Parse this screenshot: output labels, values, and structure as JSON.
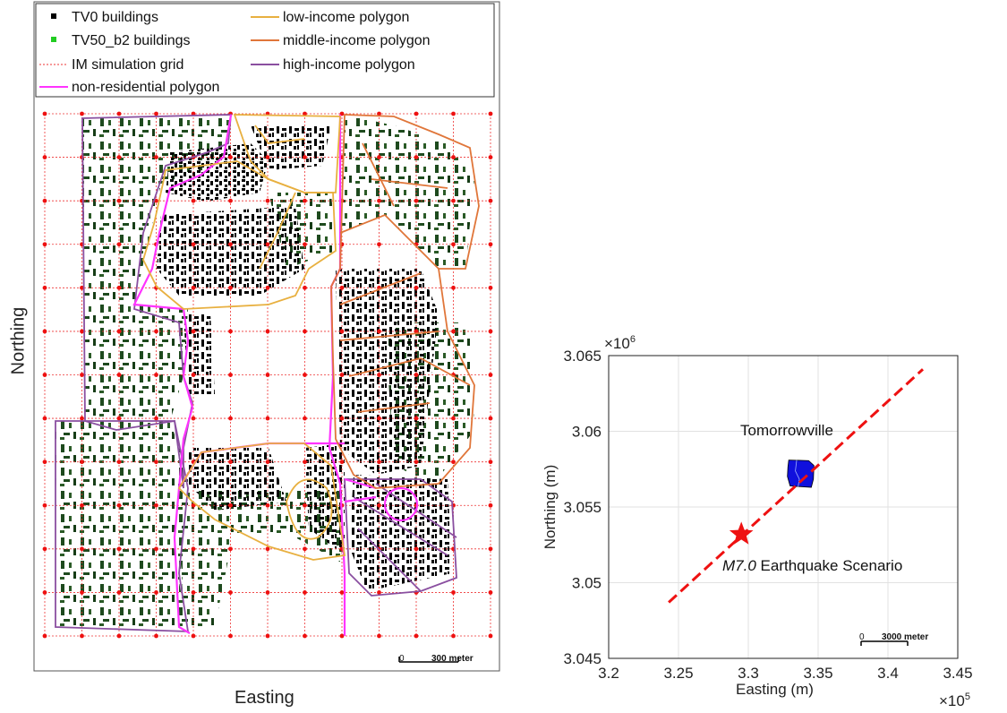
{
  "left_map": {
    "ylabel": "Northing",
    "xlabel": "Easting",
    "legend": [
      {
        "label": "TV0 buildings",
        "symbol": "square",
        "color": "#000000"
      },
      {
        "label": "TV50_b2 buildings",
        "symbol": "square",
        "color": "#22cc22"
      },
      {
        "label": "IM simulation grid",
        "symbol": "dotted-line",
        "color": "#ee3333"
      },
      {
        "label": "non-residential polygon",
        "symbol": "line",
        "color": "#ff33ff"
      },
      {
        "label": "low-income polygon",
        "symbol": "line",
        "color": "#e8b040"
      },
      {
        "label": "middle-income polygon",
        "symbol": "line",
        "color": "#e0763a"
      },
      {
        "label": "high-income polygon",
        "symbol": "line",
        "color": "#8a4fa0"
      }
    ],
    "scalebar": {
      "zero": "0",
      "label": "300 meter"
    }
  },
  "chart_data": {
    "type": "scatter",
    "xlabel": "Easting (m)",
    "ylabel": "Northing (m)",
    "x_multiplier": "×10^5",
    "y_multiplier": "×10^6",
    "xlim": [
      3.2,
      3.45
    ],
    "ylim": [
      3.045,
      3.065
    ],
    "x_ticks": [
      "3.2",
      "3.25",
      "3.3",
      "3.35",
      "3.4",
      "3.45"
    ],
    "y_ticks": [
      "3.045",
      "3.05",
      "3.055",
      "3.06",
      "3.065"
    ],
    "grid": true,
    "fault_line": {
      "x": [
        3.243,
        3.425
      ],
      "y": [
        3.0487,
        3.0641
      ],
      "color": "#ee1111",
      "style": "dashed"
    },
    "epicenter": {
      "x": 3.295,
      "y": 3.0532,
      "marker": "star",
      "color": "#ee1111"
    },
    "city_region": {
      "x": [
        3.328,
        3.347
      ],
      "y": [
        3.0563,
        3.0581
      ],
      "color": "#1010dd"
    },
    "annotations": {
      "city": "Tomorrowville",
      "scenario_mag": "M7.0",
      "scenario": " Earthquake Scenario"
    },
    "scalebar": {
      "zero": "0",
      "label": "3000 meter"
    }
  }
}
